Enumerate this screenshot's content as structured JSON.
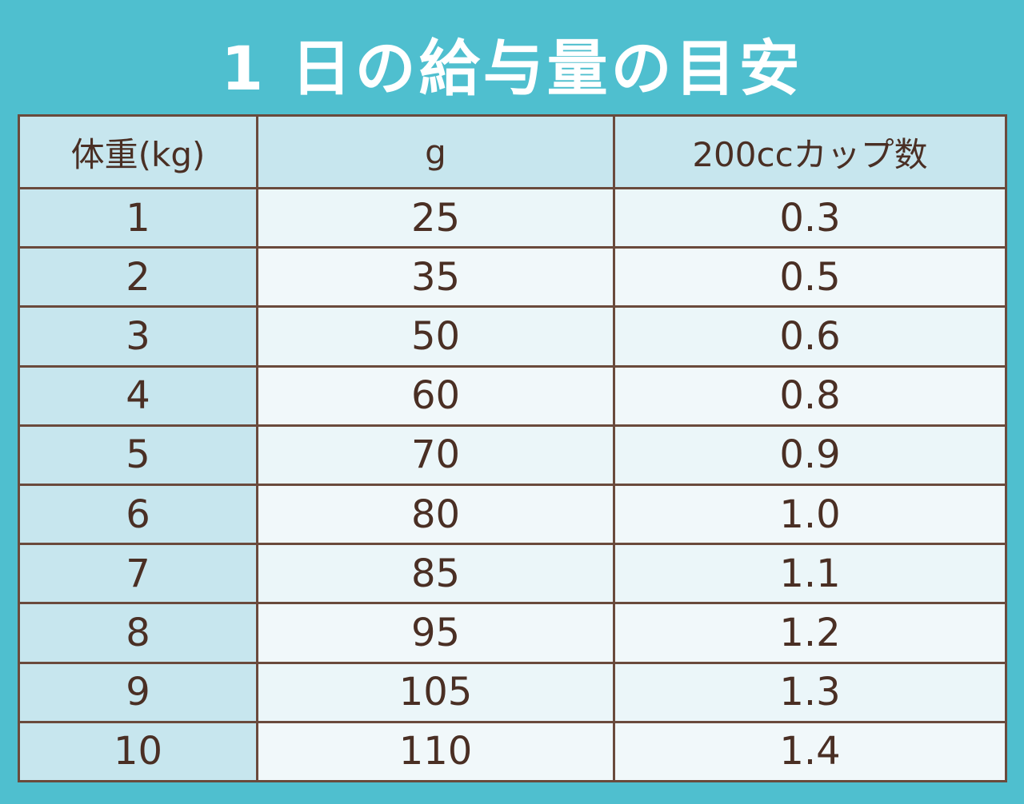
{
  "title": "1 日の給与量の目安",
  "table": {
    "headers": [
      "体重(kg)",
      "g",
      "200ccカップ数"
    ],
    "rows": [
      [
        "1",
        "25",
        "0.3"
      ],
      [
        "2",
        "35",
        "0.5"
      ],
      [
        "3",
        "50",
        "0.6"
      ],
      [
        "4",
        "60",
        "0.8"
      ],
      [
        "5",
        "70",
        "0.9"
      ],
      [
        "6",
        "80",
        "1.0"
      ],
      [
        "7",
        "85",
        "1.1"
      ],
      [
        "8",
        "95",
        "1.2"
      ],
      [
        "9",
        "105",
        "1.3"
      ],
      [
        "10",
        "110",
        "1.4"
      ]
    ]
  },
  "colors": {
    "background": "#4fbfcf",
    "header_fill": "#c7e6ee",
    "cell_fill": "#ebf6f9",
    "border": "#6a4a3c",
    "text": "#4a2f24"
  }
}
